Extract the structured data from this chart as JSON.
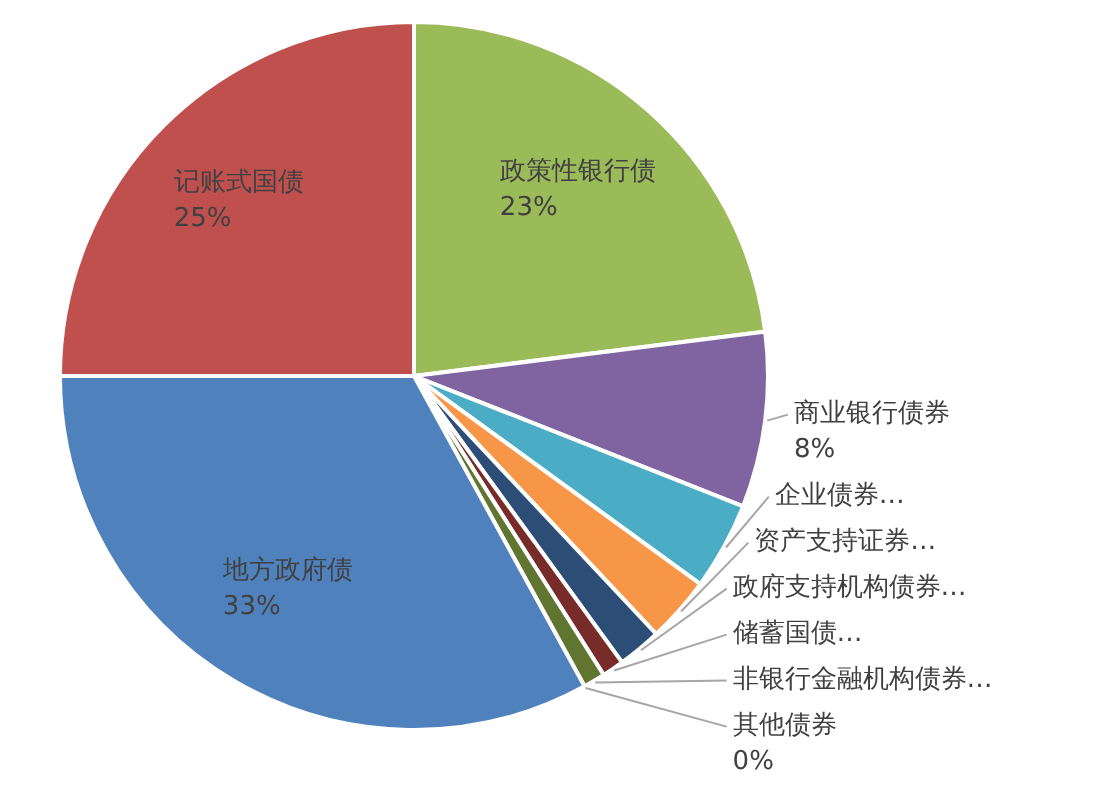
{
  "chart_data": {
    "type": "pie",
    "categories": [
      "政策性银行债",
      "商业银行债券",
      "企业债券…",
      "资产支持证券…",
      "政府支持机构债券…",
      "储蓄国债…",
      "非银行金融机构债券…",
      "其他债券",
      "地方政府债",
      "记账式国债"
    ],
    "values": [
      23,
      8,
      4,
      3,
      2,
      1,
      1,
      0,
      33,
      25
    ],
    "colors": [
      "#9bbb59",
      "#8064a2",
      "#4bacc6",
      "#f79646",
      "#2c4d75",
      "#772c2a",
      "#5f7530",
      "#4d3b62",
      "#4f81bd",
      "#c0504d"
    ],
    "value_labels": [
      "23%",
      "8%",
      null,
      null,
      null,
      null,
      null,
      "0%",
      "33%",
      "25%"
    ]
  }
}
